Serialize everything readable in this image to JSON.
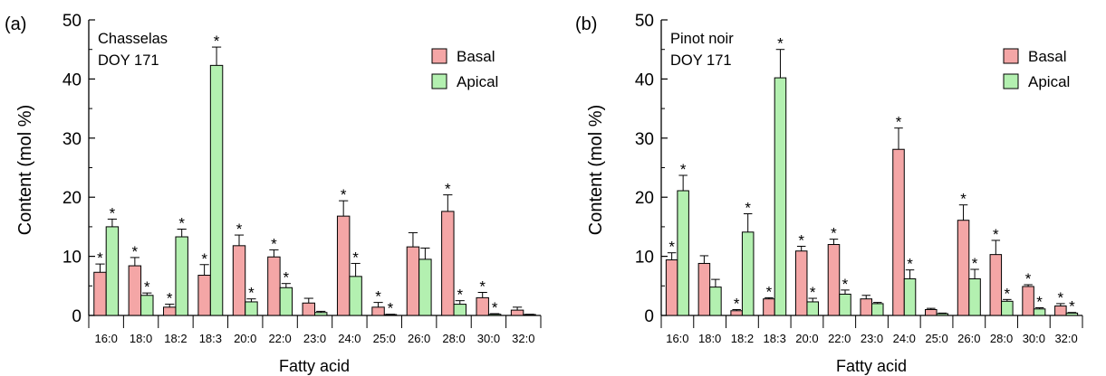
{
  "chart_data": [
    {
      "type": "bar",
      "panel_label": "(a)",
      "annotation_lines": [
        "Chasselas",
        "DOY 171"
      ],
      "xlabel": "Fatty acid",
      "ylabel": "Content (mol %)",
      "ylim": [
        0,
        50
      ],
      "yticks": [
        "0",
        "10",
        "20",
        "30",
        "40",
        "50"
      ],
      "legend_position": "top-right",
      "grid": false,
      "categories": [
        "16:0",
        "18:0",
        "18:2",
        "18:3",
        "20:0",
        "22:0",
        "23:0",
        "24:0",
        "25:0",
        "26:0",
        "28:0",
        "30:0",
        "32:0"
      ],
      "series": [
        {
          "name": "Basal",
          "color": "#f4a6a6",
          "values": [
            7.3,
            8.4,
            1.4,
            6.8,
            11.8,
            9.9,
            2.1,
            16.8,
            1.4,
            11.6,
            17.6,
            3.0,
            0.9
          ],
          "errors": [
            1.4,
            1.4,
            0.5,
            1.8,
            1.8,
            1.2,
            0.8,
            2.6,
            0.8,
            2.4,
            2.8,
            0.9,
            0.5
          ],
          "significant": [
            true,
            true,
            true,
            true,
            true,
            true,
            false,
            true,
            true,
            false,
            true,
            true,
            false
          ]
        },
        {
          "name": "Apical",
          "color": "#b3f0b0",
          "values": [
            15.0,
            3.4,
            13.3,
            42.3,
            2.3,
            4.7,
            0.5,
            6.6,
            0.1,
            9.5,
            1.9,
            0.2,
            0.1
          ],
          "errors": [
            1.3,
            0.4,
            1.3,
            3.1,
            0.5,
            0.7,
            0.2,
            2.2,
            0.1,
            1.9,
            0.6,
            0.1,
            0.1
          ],
          "significant": [
            true,
            true,
            true,
            true,
            true,
            true,
            false,
            true,
            true,
            false,
            true,
            true,
            false
          ]
        }
      ]
    },
    {
      "type": "bar",
      "panel_label": "(b)",
      "annotation_lines": [
        "Pinot noir",
        "DOY 171"
      ],
      "xlabel": "Fatty acid",
      "ylabel": "Content (mol %)",
      "ylim": [
        0,
        50
      ],
      "yticks": [
        "0",
        "10",
        "20",
        "30",
        "40",
        "50"
      ],
      "legend_position": "top-right",
      "grid": false,
      "categories": [
        "16:0",
        "18:0",
        "18:2",
        "18:3",
        "20:0",
        "22:0",
        "23:0",
        "24:0",
        "25:0",
        "26:0",
        "28:0",
        "30:0",
        "32:0"
      ],
      "series": [
        {
          "name": "Basal",
          "color": "#f4a6a6",
          "values": [
            9.4,
            8.8,
            0.8,
            2.8,
            10.9,
            12.0,
            2.8,
            28.1,
            1.0,
            16.1,
            10.3,
            4.9,
            1.6
          ],
          "errors": [
            1.2,
            1.3,
            0.2,
            0.2,
            0.8,
            0.9,
            0.6,
            3.6,
            0.2,
            2.6,
            2.4,
            0.3,
            0.4
          ],
          "significant": [
            true,
            false,
            true,
            true,
            true,
            true,
            false,
            true,
            false,
            true,
            true,
            true,
            true
          ]
        },
        {
          "name": "Apical",
          "color": "#b3f0b0",
          "values": [
            21.1,
            4.8,
            14.1,
            40.2,
            2.3,
            3.6,
            2.0,
            6.2,
            0.3,
            6.2,
            2.4,
            1.1,
            0.4
          ],
          "errors": [
            2.6,
            1.3,
            3.1,
            4.8,
            0.6,
            0.7,
            0.2,
            1.5,
            0.1,
            1.6,
            0.3,
            0.2,
            0.1
          ],
          "significant": [
            true,
            false,
            true,
            true,
            true,
            true,
            false,
            true,
            false,
            true,
            true,
            true,
            true
          ]
        }
      ]
    }
  ]
}
